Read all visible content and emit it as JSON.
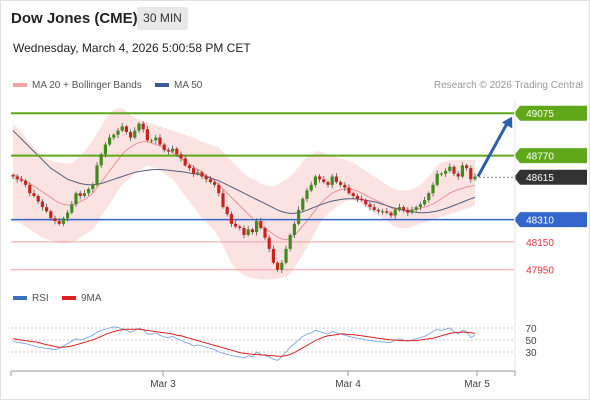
{
  "header": {
    "title": "Dow Jones (CME)",
    "timeframe": "30 MIN",
    "datetime": "Wednesday, March 4, 2026 5:00:58 PM CET"
  },
  "legend": {
    "ma20": "MA 20 + Bollinger Bands",
    "ma50": "MA 50",
    "credit": "Research © 2026 Trading Central"
  },
  "rsi_legend": {
    "rsi": "RSI",
    "ma9": "9MA"
  },
  "colors": {
    "green": "#5fa81a",
    "blue": "#3366cc",
    "red_level": "#e8313b",
    "boll_fill": "#fbe0df",
    "ma20": "#e88a8a",
    "ma50": "#555d7e",
    "rsi": "#7fa6dd",
    "rsi_ma": "#dd2222",
    "up": "#3f8c1b",
    "down": "#c8231c",
    "current": "#333333"
  },
  "chart_data": [
    {
      "type": "candlestick",
      "title": "Dow Jones (CME)",
      "x_labels": [
        "Mar 3",
        "Mar 4",
        "Mar 5"
      ],
      "ylim": [
        47840,
        49170
      ],
      "current_price": 48615,
      "levels": [
        {
          "value": 49075,
          "label": "49075",
          "style": "resistance-green"
        },
        {
          "value": 48770,
          "label": "48770",
          "style": "resistance-green"
        },
        {
          "value": 48310,
          "label": "48310",
          "style": "pivot-blue"
        },
        {
          "value": 48150,
          "label": "48150",
          "style": "support-red"
        },
        {
          "value": 47950,
          "label": "47950",
          "style": "support-red"
        }
      ],
      "target_arrow": {
        "from": 48620,
        "to": 49050
      },
      "closes": [
        48620,
        48600,
        48590,
        48560,
        48500,
        48480,
        48440,
        48400,
        48370,
        48320,
        48300,
        48280,
        48320,
        48360,
        48420,
        48500,
        48480,
        48500,
        48530,
        48560,
        48700,
        48780,
        48850,
        48900,
        48920,
        48950,
        48980,
        48940,
        48900,
        48950,
        49000,
        48960,
        48880,
        48880,
        48900,
        48850,
        48810,
        48800,
        48820,
        48780,
        48750,
        48700,
        48680,
        48640,
        48650,
        48620,
        48600,
        48580,
        48560,
        48500,
        48400,
        48350,
        48280,
        48260,
        48250,
        48200,
        48240,
        48220,
        48300,
        48250,
        48180,
        48100,
        48000,
        47950,
        48000,
        48100,
        48200,
        48280,
        48380,
        48460,
        48520,
        48560,
        48620,
        48600,
        48580,
        48560,
        48620,
        48580,
        48560,
        48540,
        48500,
        48480,
        48460,
        48450,
        48420,
        48400,
        48380,
        48370,
        48370,
        48360,
        48340,
        48380,
        48400,
        48380,
        48360,
        48380,
        48400,
        48420,
        48450,
        48500,
        48560,
        48640,
        48640,
        48660,
        48690,
        48640,
        48620,
        48700,
        48680,
        48600,
        48620
      ],
      "ma20": [
        48640,
        48620,
        48600,
        48585,
        48570,
        48550,
        48530,
        48510,
        48490,
        48470,
        48450,
        48430,
        48420,
        48415,
        48415,
        48425,
        48440,
        48455,
        48475,
        48500,
        48540,
        48580,
        48620,
        48660,
        48700,
        48740,
        48780,
        48810,
        48830,
        48850,
        48865,
        48870,
        48870,
        48860,
        48850,
        48840,
        48825,
        48810,
        48790,
        48770,
        48750,
        48730,
        48710,
        48690,
        48670,
        48650,
        48630,
        48610,
        48590,
        48560,
        48530,
        48500,
        48470,
        48440,
        48410,
        48380,
        48350,
        48320,
        48290,
        48265,
        48245,
        48225,
        48205,
        48185,
        48170,
        48165,
        48175,
        48200,
        48230,
        48265,
        48300,
        48340,
        48380,
        48420,
        48450,
        48475,
        48500,
        48515,
        48525,
        48530,
        48530,
        48525,
        48515,
        48500,
        48485,
        48470,
        48455,
        48440,
        48425,
        48410,
        48395,
        48385,
        48380,
        48378,
        48378,
        48380,
        48385,
        48392,
        48400,
        48410,
        48422,
        48440,
        48460,
        48480,
        48500,
        48515,
        48525,
        48535,
        48545,
        48550,
        48555
      ],
      "boll_upper": [
        49000,
        48970,
        48940,
        48900,
        48860,
        48830,
        48800,
        48770,
        48750,
        48735,
        48725,
        48720,
        48715,
        48715,
        48720,
        48740,
        48770,
        48800,
        48840,
        48880,
        48930,
        48980,
        49030,
        49070,
        49100,
        49110,
        49110,
        49090,
        49060,
        49040,
        49030,
        49020,
        49010,
        49000,
        48990,
        48980,
        48970,
        48960,
        48950,
        48940,
        48930,
        48920,
        48910,
        48900,
        48880,
        48870,
        48860,
        48850,
        48840,
        48830,
        48800,
        48770,
        48730,
        48700,
        48670,
        48640,
        48620,
        48600,
        48590,
        48570,
        48560,
        48550,
        48550,
        48560,
        48580,
        48600,
        48620,
        48650,
        48690,
        48730,
        48760,
        48780,
        48800,
        48800,
        48790,
        48780,
        48770,
        48760,
        48750,
        48740,
        48730,
        48720,
        48700,
        48680,
        48660,
        48640,
        48620,
        48600,
        48580,
        48560,
        48540,
        48530,
        48520,
        48520,
        48520,
        48530,
        48540,
        48560,
        48590,
        48620,
        48660,
        48700,
        48720,
        48730,
        48740,
        48740,
        48740,
        48740,
        48740,
        48740,
        48740
      ],
      "boll_lower": [
        48300,
        48290,
        48280,
        48260,
        48240,
        48220,
        48200,
        48180,
        48170,
        48160,
        48150,
        48140,
        48140,
        48140,
        48150,
        48160,
        48180,
        48200,
        48220,
        48240,
        48280,
        48330,
        48380,
        48420,
        48470,
        48520,
        48560,
        48590,
        48610,
        48640,
        48660,
        48680,
        48700,
        48690,
        48680,
        48660,
        48640,
        48620,
        48600,
        48560,
        48520,
        48480,
        48440,
        48400,
        48360,
        48320,
        48290,
        48260,
        48230,
        48180,
        48120,
        48060,
        48000,
        47960,
        47930,
        47910,
        47900,
        47890,
        47885,
        47880,
        47878,
        47880,
        47880,
        47885,
        47890,
        47900,
        47920,
        47960,
        48010,
        48060,
        48110,
        48170,
        48220,
        48280,
        48320,
        48350,
        48380,
        48400,
        48420,
        48440,
        48450,
        48450,
        48440,
        48420,
        48400,
        48380,
        48360,
        48340,
        48320,
        48300,
        48280,
        48260,
        48250,
        48250,
        48250,
        48260,
        48270,
        48280,
        48290,
        48300,
        48310,
        48320,
        48330,
        48340,
        48350,
        48360,
        48370,
        48380,
        48390,
        48400,
        48410
      ],
      "ma50": [
        48950,
        48920,
        48890,
        48860,
        48830,
        48800,
        48770,
        48740,
        48710,
        48680,
        48660,
        48640,
        48620,
        48600,
        48590,
        48580,
        48570,
        48565,
        48560,
        48560,
        48565,
        48570,
        48580,
        48590,
        48600,
        48610,
        48620,
        48630,
        48640,
        48650,
        48655,
        48660,
        48665,
        48668,
        48670,
        48670,
        48668,
        48665,
        48662,
        48658,
        48655,
        48650,
        48645,
        48640,
        48635,
        48630,
        48620,
        48610,
        48600,
        48590,
        48575,
        48560,
        48545,
        48530,
        48515,
        48500,
        48485,
        48470,
        48455,
        48440,
        48425,
        48410,
        48395,
        48380,
        48368,
        48360,
        48355,
        48355,
        48360,
        48368,
        48378,
        48390,
        48402,
        48414,
        48425,
        48435,
        48444,
        48450,
        48455,
        48458,
        48460,
        48460,
        48458,
        48455,
        48450,
        48444,
        48438,
        48430,
        48420,
        48410,
        48400,
        48392,
        48385,
        48378,
        48372,
        48366,
        48362,
        48360,
        48360,
        48362,
        48366,
        48372,
        48380,
        48390,
        48400,
        48412,
        48424,
        48436,
        48448,
        48460,
        48470
      ]
    },
    {
      "type": "line",
      "title": "RSI",
      "ylim": [
        10,
        90
      ],
      "yticks": [
        30,
        50,
        70
      ],
      "series": [
        {
          "name": "RSI",
          "values": [
            48,
            46,
            45,
            44,
            42,
            40,
            38,
            37,
            36,
            35,
            34,
            36,
            40,
            44,
            48,
            52,
            50,
            52,
            55,
            58,
            63,
            66,
            68,
            70,
            72,
            71,
            69,
            66,
            63,
            66,
            70,
            67,
            60,
            60,
            62,
            58,
            55,
            54,
            56,
            52,
            50,
            46,
            44,
            40,
            42,
            40,
            38,
            36,
            34,
            30,
            28,
            26,
            24,
            23,
            22,
            20,
            24,
            22,
            30,
            26,
            24,
            22,
            18,
            16,
            22,
            30,
            38,
            44,
            50,
            56,
            60,
            62,
            66,
            64,
            62,
            60,
            64,
            62,
            60,
            58,
            56,
            54,
            53,
            52,
            50,
            49,
            48,
            47,
            47,
            46,
            46,
            50,
            52,
            50,
            48,
            50,
            52,
            54,
            56,
            60,
            64,
            68,
            66,
            68,
            70,
            64,
            60,
            66,
            64,
            54,
            58
          ]
        },
        {
          "name": "9MA",
          "values": [
            52,
            51,
            50,
            49,
            48,
            47,
            46,
            44,
            42,
            41,
            39,
            38,
            38,
            39,
            40,
            42,
            44,
            46,
            48,
            50,
            53,
            56,
            59,
            62,
            64,
            66,
            67,
            68,
            68,
            68,
            68,
            67,
            66,
            65,
            64,
            63,
            62,
            61,
            60,
            58,
            57,
            55,
            53,
            51,
            49,
            47,
            45,
            43,
            41,
            39,
            37,
            35,
            33,
            31,
            29,
            28,
            27,
            26,
            26,
            25,
            25,
            24,
            24,
            23,
            23,
            24,
            26,
            29,
            33,
            37,
            41,
            45,
            49,
            52,
            55,
            57,
            58,
            59,
            60,
            60,
            59,
            59,
            58,
            57,
            56,
            55,
            54,
            53,
            52,
            51,
            50,
            50,
            49,
            49,
            49,
            49,
            49,
            50,
            51,
            52,
            53,
            55,
            57,
            59,
            61,
            62,
            63,
            63,
            63,
            62,
            61
          ]
        }
      ]
    }
  ]
}
